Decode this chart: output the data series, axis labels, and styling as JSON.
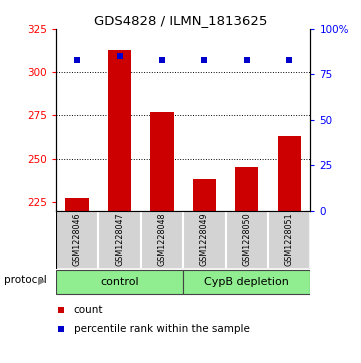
{
  "title": "GDS4828 / ILMN_1813625",
  "samples": [
    "GSM1228046",
    "GSM1228047",
    "GSM1228048",
    "GSM1228049",
    "GSM1228050",
    "GSM1228051"
  ],
  "counts": [
    227,
    313,
    277,
    238,
    245,
    263
  ],
  "percentiles": [
    83,
    85,
    83,
    83,
    83,
    83
  ],
  "bar_color": "#CC0000",
  "dot_color": "#0000CC",
  "ylim_left": [
    220,
    325
  ],
  "ylim_right": [
    0,
    100
  ],
  "yticks_left": [
    225,
    250,
    275,
    300,
    325
  ],
  "yticks_right": [
    0,
    25,
    50,
    75,
    100
  ],
  "grid_values": [
    250,
    275,
    300
  ],
  "protocol_label": "protocol",
  "legend_count": "count",
  "legend_percentile": "percentile rank within the sample",
  "bar_bottom": 220,
  "green_color": "#90EE90",
  "gray_color": "#d3d3d3"
}
